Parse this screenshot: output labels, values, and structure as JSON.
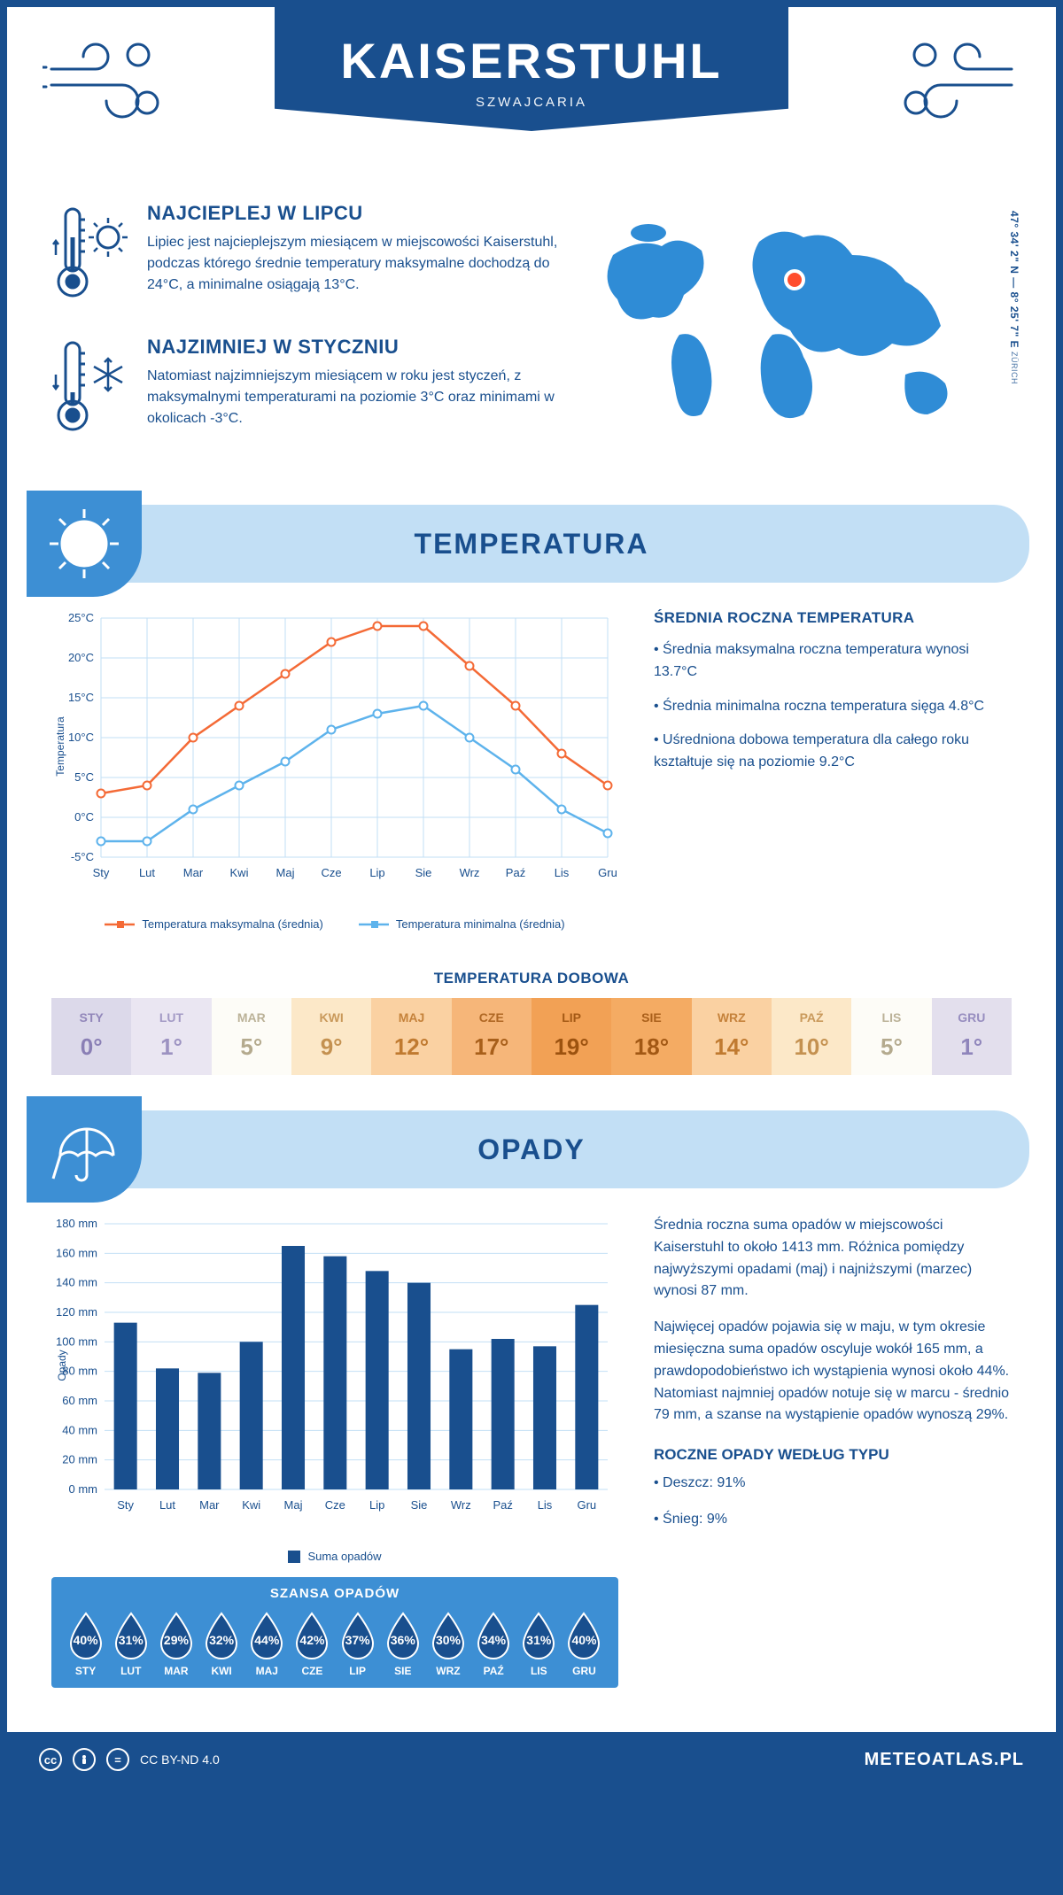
{
  "header": {
    "title": "KAISERSTUHL",
    "subtitle": "SZWAJCARIA"
  },
  "coords": {
    "line": "47° 34' 2\" N — 8° 25' 7\" E",
    "place": "ZÜRICH"
  },
  "facts": {
    "hot": {
      "title": "NAJCIEPLEJ W LIPCU",
      "body": "Lipiec jest najcieplejszym miesiącem w miejscowości Kaiserstuhl, podczas którego średnie temperatury maksymalne dochodzą do 24°C, a minimalne osiągają 13°C."
    },
    "cold": {
      "title": "NAJZIMNIEJ W STYCZNIU",
      "body": "Natomiast najzimniejszym miesiącem w roku jest styczeń, z maksymalnymi temperaturami na poziomie 3°C oraz minimami w okolicach -3°C."
    }
  },
  "sections": {
    "temp": "TEMPERATURA",
    "rain": "OPADY"
  },
  "months": [
    "Sty",
    "Lut",
    "Mar",
    "Kwi",
    "Maj",
    "Cze",
    "Lip",
    "Sie",
    "Wrz",
    "Paź",
    "Lis",
    "Gru"
  ],
  "months_upper": [
    "STY",
    "LUT",
    "MAR",
    "KWI",
    "MAJ",
    "CZE",
    "LIP",
    "SIE",
    "WRZ",
    "PAŹ",
    "LIS",
    "GRU"
  ],
  "temp_chart": {
    "type": "line",
    "ylabel": "Temperatura",
    "ylim": [
      -5,
      25
    ],
    "ytick_step": 5,
    "ytick_labels": [
      "-5°C",
      "0°C",
      "5°C",
      "10°C",
      "15°C",
      "20°C",
      "25°C"
    ],
    "series": {
      "max": {
        "values": [
          3,
          4,
          10,
          14,
          18,
          22,
          24,
          24,
          19,
          14,
          8,
          4
        ],
        "color": "#f46a36",
        "label": "Temperatura maksymalna (średnia)"
      },
      "min": {
        "values": [
          -3,
          -3,
          1,
          4,
          7,
          11,
          13,
          14,
          10,
          6,
          1,
          -2
        ],
        "color": "#5eb3ec",
        "label": "Temperatura minimalna (średnia)"
      }
    },
    "grid_color": "#c2dff5",
    "marker": "circle",
    "line_width": 2.5
  },
  "avg_annual": {
    "title": "ŚREDNIA ROCZNA TEMPERATURA",
    "p1": "• Średnia maksymalna roczna temperatura wynosi 13.7°C",
    "p2": "• Średnia minimalna roczna temperatura sięga 4.8°C",
    "p3": "• Uśredniona dobowa temperatura dla całego roku kształtuje się na poziomie 9.2°C"
  },
  "daily_temp": {
    "title": "TEMPERATURA DOBOWA",
    "values": [
      "0°",
      "1°",
      "5°",
      "9°",
      "12°",
      "17°",
      "19°",
      "18°",
      "14°",
      "10°",
      "5°",
      "1°"
    ],
    "cell_bg": [
      "#dcd9ea",
      "#eae6f2",
      "#fdfcf7",
      "#fce8c8",
      "#fad1a2",
      "#f6b679",
      "#f2a155",
      "#f4ab63",
      "#fad1a2",
      "#fce8c8",
      "#fdfcf7",
      "#e3dfed"
    ],
    "cell_color": [
      "#8a7fb5",
      "#9c92c1",
      "#b4aa8e",
      "#c49150",
      "#c07a30",
      "#a85f1a",
      "#9c520f",
      "#a25814",
      "#c07a30",
      "#c49150",
      "#b4aa8e",
      "#8f85bb"
    ]
  },
  "rain_chart": {
    "type": "bar",
    "ylabel": "Opady",
    "ylim": [
      0,
      180
    ],
    "ytick_step": 20,
    "values": [
      113,
      82,
      79,
      100,
      165,
      158,
      148,
      140,
      95,
      102,
      97,
      125
    ],
    "bar_color": "#194f8e",
    "grid_color": "#c2dff5",
    "legend": "Suma opadów"
  },
  "rain_text": {
    "p1": "Średnia roczna suma opadów w miejscowości Kaiserstuhl to około 1413 mm. Różnica pomiędzy najwyższymi opadami (maj) i najniższymi (marzec) wynosi 87 mm.",
    "p2": "Najwięcej opadów pojawia się w maju, w tym okresie miesięczna suma opadów oscyluje wokół 165 mm, a prawdopodobieństwo ich wystąpienia wynosi około 44%. Natomiast najmniej opadów notuje się w marcu - średnio 79 mm, a szanse na wystąpienie opadów wynoszą 29%.",
    "type_title": "ROCZNE OPADY WEDŁUG TYPU",
    "type_rain": "• Deszcz: 91%",
    "type_snow": "• Śnieg: 9%"
  },
  "chance": {
    "title": "SZANSA OPADÓW",
    "values": [
      "40%",
      "31%",
      "29%",
      "32%",
      "44%",
      "42%",
      "37%",
      "36%",
      "30%",
      "34%",
      "31%",
      "40%"
    ],
    "drop_fill": "#194f8e",
    "drop_stroke": "#ffffff"
  },
  "footer": {
    "license": "CC BY-ND 4.0",
    "brand": "METEOATLAS.PL"
  },
  "colors": {
    "primary": "#194f8e",
    "accent_light": "#c2dff5",
    "accent_mid": "#3d8fd4",
    "map_fill": "#2f8cd6",
    "marker": "#ff4d2d"
  }
}
